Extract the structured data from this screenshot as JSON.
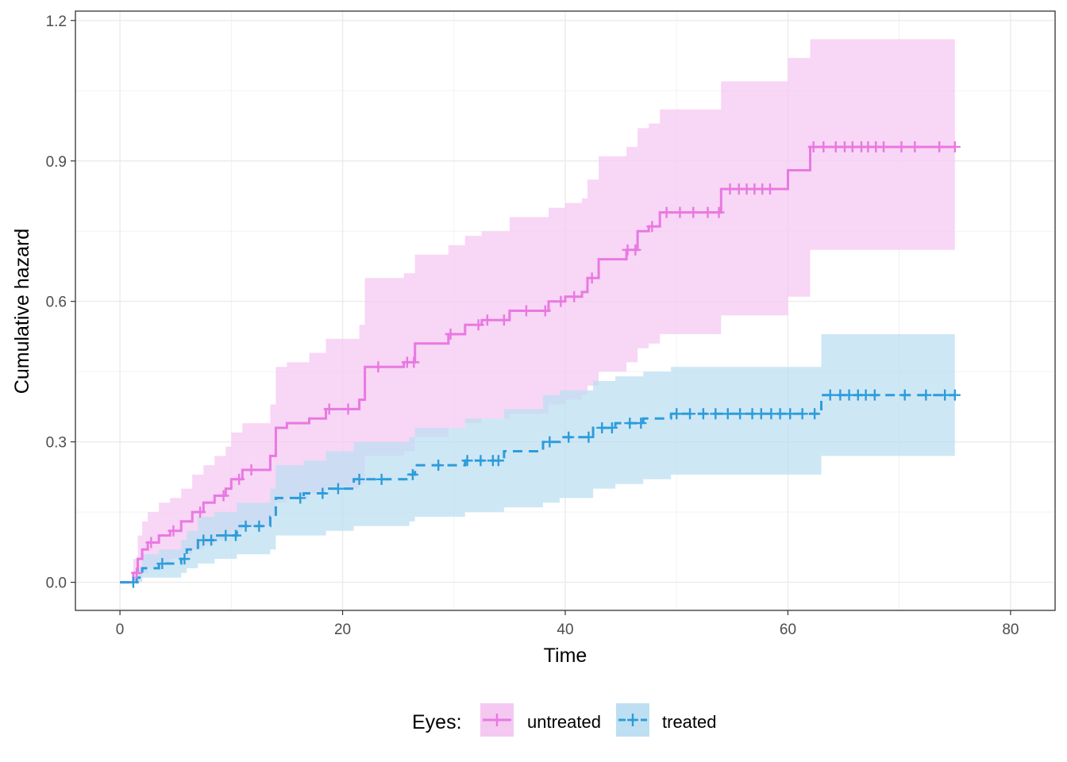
{
  "chart_data": {
    "type": "line",
    "subtype": "step cumulative hazard with confidence bands",
    "xlabel": "Time",
    "ylabel": "Cumulative hazard",
    "xlim": [
      -4,
      84
    ],
    "ylim": [
      -0.06,
      1.22
    ],
    "x_ticks": [
      0,
      20,
      40,
      60,
      80
    ],
    "y_ticks": [
      0.0,
      0.3,
      0.6,
      0.9,
      1.2
    ],
    "x_tick_labels": [
      "0",
      "20",
      "40",
      "60",
      "80"
    ],
    "y_tick_labels": [
      "0.0",
      "0.3",
      "0.6",
      "0.9",
      "1.2"
    ],
    "grid": true,
    "legend": {
      "title": "Eyes:",
      "position": "bottom"
    },
    "series": [
      {
        "name": "untreated",
        "color": "#E879E1",
        "band_color": "#F5C8F2",
        "line_style": "solid",
        "x": [
          0,
          1.2,
          1.6,
          2.0,
          2.5,
          3.5,
          4.5,
          5.5,
          6.5,
          7.5,
          8.5,
          9.5,
          10.0,
          11.0,
          13.5,
          14.0,
          15.0,
          17.0,
          18.5,
          21.5,
          22.0,
          25.5,
          26.5,
          29.5,
          31.0,
          32.5,
          35.0,
          38.5,
          40.0,
          41.5,
          42.0,
          43.0,
          45.5,
          46.5,
          47.5,
          48.5,
          54.0,
          60.0,
          62.0,
          75.0
        ],
        "y": [
          0,
          0.02,
          0.05,
          0.07,
          0.085,
          0.1,
          0.11,
          0.13,
          0.15,
          0.17,
          0.185,
          0.2,
          0.22,
          0.24,
          0.27,
          0.33,
          0.34,
          0.35,
          0.37,
          0.39,
          0.46,
          0.47,
          0.51,
          0.53,
          0.55,
          0.56,
          0.58,
          0.6,
          0.61,
          0.62,
          0.65,
          0.69,
          0.71,
          0.75,
          0.76,
          0.79,
          0.84,
          0.88,
          0.93,
          0.93
        ],
        "lower": [
          0,
          0.0,
          0.01,
          0.02,
          0.03,
          0.04,
          0.05,
          0.06,
          0.07,
          0.08,
          0.09,
          0.1,
          0.11,
          0.12,
          0.14,
          0.17,
          0.18,
          0.19,
          0.2,
          0.21,
          0.27,
          0.28,
          0.31,
          0.33,
          0.34,
          0.35,
          0.36,
          0.38,
          0.39,
          0.4,
          0.42,
          0.45,
          0.47,
          0.5,
          0.51,
          0.53,
          0.57,
          0.61,
          0.71,
          0.71
        ],
        "upper": [
          0,
          0.05,
          0.1,
          0.13,
          0.15,
          0.17,
          0.18,
          0.2,
          0.23,
          0.25,
          0.27,
          0.29,
          0.32,
          0.34,
          0.38,
          0.46,
          0.47,
          0.49,
          0.52,
          0.55,
          0.65,
          0.66,
          0.7,
          0.72,
          0.74,
          0.75,
          0.78,
          0.8,
          0.81,
          0.82,
          0.86,
          0.91,
          0.93,
          0.97,
          0.98,
          1.01,
          1.07,
          1.12,
          1.16,
          1.16
        ],
        "censor_x": [
          1.5,
          2.8,
          4.8,
          7.2,
          9.3,
          10.7,
          11.8,
          18.8,
          20.5,
          23.2,
          25.8,
          26.4,
          29.7,
          32.2,
          33.0,
          34.5,
          36.5,
          38.2,
          39.6,
          40.8,
          42.4,
          45.6,
          46.3,
          47.8,
          49.1,
          50.3,
          51.5,
          52.8,
          53.8,
          54.8,
          55.6,
          56.3,
          57.0,
          57.7,
          58.4,
          62.3,
          63.2,
          64.3,
          65.1,
          65.8,
          66.6,
          67.2,
          67.9,
          68.6,
          70.2,
          71.4,
          73.6,
          75.0
        ]
      },
      {
        "name": "treated",
        "color": "#2D9CDB",
        "band_color": "#BEDFF2",
        "line_style": "dashed",
        "x": [
          0,
          1.5,
          2.0,
          3.5,
          5.5,
          6.0,
          7.0,
          8.5,
          10.5,
          13.5,
          14.0,
          16.5,
          18.5,
          21.0,
          26.0,
          26.5,
          31.0,
          34.5,
          38.0,
          39.5,
          42.5,
          44.5,
          47.0,
          49.5,
          63.0,
          75.0
        ],
        "y": [
          0,
          0.01,
          0.03,
          0.04,
          0.05,
          0.07,
          0.09,
          0.1,
          0.12,
          0.14,
          0.18,
          0.19,
          0.2,
          0.22,
          0.23,
          0.25,
          0.26,
          0.28,
          0.3,
          0.31,
          0.33,
          0.34,
          0.35,
          0.36,
          0.4,
          0.4
        ],
        "lower": [
          0,
          0.0,
          0.01,
          0.01,
          0.02,
          0.03,
          0.04,
          0.05,
          0.06,
          0.07,
          0.1,
          0.1,
          0.11,
          0.12,
          0.13,
          0.14,
          0.15,
          0.16,
          0.17,
          0.18,
          0.2,
          0.21,
          0.22,
          0.23,
          0.27,
          0.27
        ],
        "upper": [
          0,
          0.03,
          0.06,
          0.07,
          0.09,
          0.11,
          0.14,
          0.15,
          0.17,
          0.2,
          0.25,
          0.26,
          0.28,
          0.3,
          0.31,
          0.33,
          0.35,
          0.37,
          0.4,
          0.41,
          0.43,
          0.44,
          0.45,
          0.46,
          0.53,
          0.53
        ],
        "censor_x": [
          1.2,
          3.8,
          5.8,
          7.5,
          8.2,
          9.5,
          10.4,
          11.3,
          12.5,
          16.2,
          18.2,
          19.6,
          21.5,
          23.5,
          26.3,
          28.6,
          31.2,
          32.4,
          33.5,
          34.0,
          38.6,
          40.3,
          42.1,
          43.3,
          44.2,
          45.8,
          46.8,
          50.0,
          51.2,
          52.4,
          53.5,
          54.6,
          55.7,
          56.8,
          57.6,
          58.5,
          59.3,
          60.2,
          61.3,
          62.4,
          63.8,
          64.7,
          65.5,
          66.3,
          67.0,
          67.8,
          70.5,
          72.4,
          74.1,
          75.0
        ]
      }
    ]
  }
}
